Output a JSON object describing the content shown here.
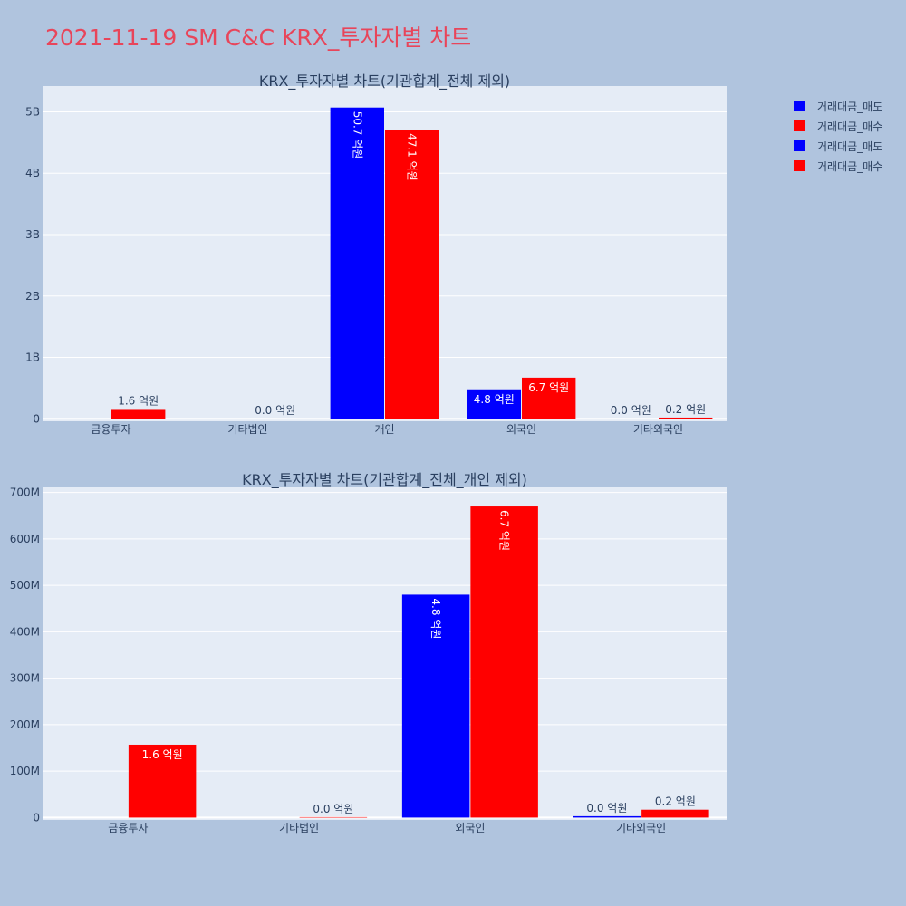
{
  "title": "2021-11-19 SM C&C KRX_투자자별 차트",
  "colors": {
    "sell": "#0000ff",
    "buy": "#ff0000",
    "plot_bg": "#e5ecf6",
    "page_bg": "#b0c4de",
    "title": "#e8455a",
    "text": "#2a3f5f"
  },
  "legend": [
    {
      "label": "거래대금_매도",
      "color": "#0000ff"
    },
    {
      "label": "거래대금_매수",
      "color": "#ff0000"
    },
    {
      "label": "거래대금_매도",
      "color": "#0000ff"
    },
    {
      "label": "거래대금_매수",
      "color": "#ff0000"
    }
  ],
  "chart_data": [
    {
      "type": "bar",
      "title": "KRX_투자자별 차트(기관합계_전체 제외)",
      "categories": [
        "금융투자",
        "기타법인",
        "개인",
        "외국인",
        "기타외국인"
      ],
      "series": [
        {
          "name": "거래대금_매도",
          "values": [
            0,
            0,
            5070000000,
            480000000,
            3000000
          ],
          "labels": [
            "",
            "",
            "50.7 억원",
            "4.8 억원",
            "0.0 억원"
          ]
        },
        {
          "name": "거래대금_매수",
          "values": [
            160000000,
            1000000,
            4710000000,
            670000000,
            20000000
          ],
          "labels": [
            "1.6 억원",
            "0.0 억원",
            "47.1 억원",
            "6.7 억원",
            "0.2 억원"
          ]
        }
      ],
      "ylim": [
        -40000000,
        5420000000
      ],
      "yticks": [
        0,
        1000000000,
        2000000000,
        3000000000,
        4000000000,
        5000000000
      ],
      "ytick_labels": [
        "0",
        "1B",
        "2B",
        "3B",
        "4B",
        "5B"
      ]
    },
    {
      "type": "bar",
      "title": "KRX_투자자별 차트(기관합계_전체_개인 제외)",
      "categories": [
        "금융투자",
        "기타법인",
        "외국인",
        "기타외국인"
      ],
      "series": [
        {
          "name": "거래대금_매도",
          "values": [
            0,
            0,
            480000000,
            3000000
          ],
          "labels": [
            "",
            "",
            "4.8 억원",
            "0.0 억원"
          ]
        },
        {
          "name": "거래대금_매수",
          "values": [
            157000000,
            1000000,
            670000000,
            17000000
          ],
          "labels": [
            "1.6 억원",
            "0.0 억원",
            "6.7 억원",
            "0.2 억원"
          ]
        }
      ],
      "ylim": [
        -5000000,
        713000000
      ],
      "yticks": [
        0,
        100000000,
        200000000,
        300000000,
        400000000,
        500000000,
        600000000,
        700000000
      ],
      "ytick_labels": [
        "0",
        "100M",
        "200M",
        "300M",
        "400M",
        "500M",
        "600M",
        "700M"
      ]
    }
  ]
}
